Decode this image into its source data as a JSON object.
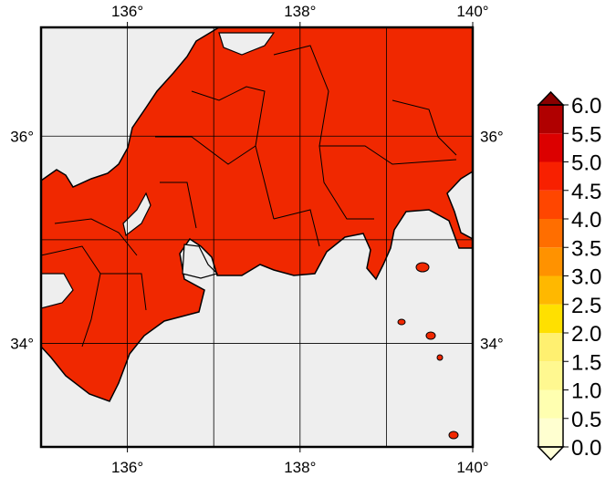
{
  "map": {
    "xlim": [
      135,
      140
    ],
    "ylim": [
      33,
      37.05
    ],
    "xticks": [
      {
        "value": 136,
        "label": "136°"
      },
      {
        "value": 138,
        "label": "138°"
      },
      {
        "value": 140,
        "label": "140°"
      }
    ],
    "yticks": [
      {
        "value": 34,
        "label": "34°"
      },
      {
        "value": 36,
        "label": "36°"
      }
    ],
    "grid": true,
    "xgrid": [
      136,
      137,
      138,
      139
    ],
    "ygrid": [
      34,
      35,
      36
    ],
    "land_color": "#f02800",
    "sea_color": "#eeeeee"
  },
  "colorbar": {
    "ticks": [
      {
        "value": 0,
        "label": "0.0"
      },
      {
        "value": 0.5,
        "label": "0.5"
      },
      {
        "value": 1,
        "label": "1.0"
      },
      {
        "value": 1.5,
        "label": "1.5"
      },
      {
        "value": 2,
        "label": "2.0"
      },
      {
        "value": 2.5,
        "label": "2.5"
      },
      {
        "value": 3,
        "label": "3.0"
      },
      {
        "value": 3.5,
        "label": "3.5"
      },
      {
        "value": 4,
        "label": "4.0"
      },
      {
        "value": 4.5,
        "label": "4.5"
      },
      {
        "value": 5,
        "label": "5.0"
      },
      {
        "value": 5.5,
        "label": "5.5"
      },
      {
        "value": 6,
        "label": "6.0"
      }
    ],
    "colors": [
      "#ffffd0",
      "#ffffb0",
      "#fff890",
      "#fff070",
      "#ffe000",
      "#ffb800",
      "#ff9200",
      "#ff6e00",
      "#ff4600",
      "#f82000",
      "#dc0000",
      "#b00000"
    ],
    "under_color": "#ffffd8",
    "over_color": "#8a0000"
  }
}
